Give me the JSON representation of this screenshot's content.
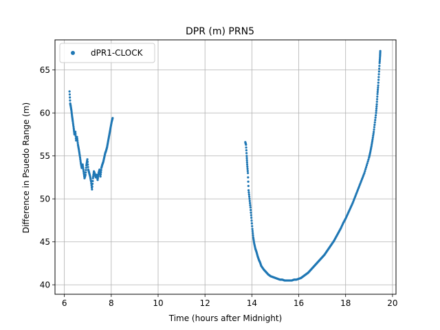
{
  "chart_data": {
    "type": "scatter",
    "title": "DPR (m) PRN5",
    "xlabel": "Time (hours after Midnight)",
    "ylabel": "Difference in Psuedo Range (m)",
    "xlim": [
      5.6,
      20.15
    ],
    "ylim": [
      38.9,
      68.5
    ],
    "xticks": [
      6,
      8,
      10,
      12,
      14,
      16,
      18,
      20
    ],
    "yticks": [
      40,
      45,
      50,
      55,
      60,
      65
    ],
    "grid": true,
    "legend": {
      "placement": "top-left",
      "entries": [
        "dPR1-CLOCK"
      ]
    },
    "series": [
      {
        "name": "dPR1-CLOCK",
        "color": "#1f77b4",
        "segments": [
          {
            "points": [
              [
                6.22,
                62.5
              ],
              [
                6.25,
                61.1
              ],
              [
                6.27,
                60.8
              ],
              [
                6.3,
                60.3
              ],
              [
                6.33,
                59.6
              ],
              [
                6.36,
                59.0
              ],
              [
                6.4,
                58.2
              ],
              [
                6.43,
                57.5
              ],
              [
                6.47,
                57.8
              ],
              [
                6.5,
                56.8
              ],
              [
                6.54,
                57.2
              ],
              [
                6.58,
                56.3
              ],
              [
                6.62,
                55.7
              ],
              [
                6.66,
                55.0
              ],
              [
                6.7,
                54.2
              ],
              [
                6.74,
                53.6
              ],
              [
                6.78,
                54.0
              ],
              [
                6.82,
                53.2
              ],
              [
                6.86,
                52.4
              ],
              [
                6.9,
                52.8
              ],
              [
                6.94,
                53.9
              ],
              [
                6.98,
                54.6
              ],
              [
                7.02,
                53.4
              ],
              [
                7.06,
                53.0
              ],
              [
                7.1,
                52.6
              ],
              [
                7.14,
                52.0
              ],
              [
                7.18,
                51.1
              ],
              [
                7.22,
                52.4
              ],
              [
                7.26,
                53.2
              ],
              [
                7.3,
                52.9
              ],
              [
                7.34,
                52.5
              ],
              [
                7.38,
                52.8
              ],
              [
                7.42,
                52.2
              ],
              [
                7.46,
                53.0
              ],
              [
                7.5,
                53.4
              ],
              [
                7.54,
                52.6
              ],
              [
                7.58,
                53.6
              ],
              [
                7.62,
                54.0
              ],
              [
                7.66,
                54.3
              ],
              [
                7.7,
                54.8
              ],
              [
                7.74,
                55.3
              ],
              [
                7.78,
                55.6
              ],
              [
                7.82,
                56.0
              ],
              [
                7.86,
                56.6
              ],
              [
                7.9,
                57.2
              ],
              [
                7.94,
                57.8
              ],
              [
                7.98,
                58.4
              ],
              [
                8.02,
                59.0
              ],
              [
                8.06,
                59.4
              ]
            ]
          },
          {
            "points": [
              [
                13.72,
                56.6
              ],
              [
                13.75,
                56.3
              ],
              [
                13.78,
                55.0
              ],
              [
                13.8,
                54.0
              ],
              [
                13.83,
                53.0
              ],
              [
                13.86,
                51.0
              ],
              [
                13.9,
                50.0
              ],
              [
                13.94,
                49.0
              ],
              [
                13.98,
                47.8
              ],
              [
                14.02,
                46.5
              ],
              [
                14.06,
                45.5
              ],
              [
                14.1,
                44.8
              ],
              [
                14.15,
                44.2
              ],
              [
                14.2,
                43.8
              ],
              [
                14.25,
                43.3
              ],
              [
                14.3,
                42.9
              ],
              [
                14.35,
                42.6
              ],
              [
                14.4,
                42.2
              ],
              [
                14.5,
                41.8
              ],
              [
                14.6,
                41.5
              ],
              [
                14.7,
                41.2
              ],
              [
                14.8,
                41.0
              ],
              [
                14.9,
                40.9
              ],
              [
                15.0,
                40.8
              ],
              [
                15.1,
                40.7
              ],
              [
                15.2,
                40.6
              ],
              [
                15.3,
                40.6
              ],
              [
                15.4,
                40.5
              ],
              [
                15.5,
                40.5
              ],
              [
                15.6,
                40.5
              ],
              [
                15.7,
                40.5
              ],
              [
                15.8,
                40.6
              ],
              [
                15.9,
                40.6
              ],
              [
                16.0,
                40.7
              ],
              [
                16.1,
                40.8
              ],
              [
                16.2,
                41.0
              ],
              [
                16.3,
                41.2
              ],
              [
                16.4,
                41.4
              ],
              [
                16.5,
                41.7
              ],
              [
                16.6,
                42.0
              ],
              [
                16.7,
                42.3
              ],
              [
                16.8,
                42.6
              ],
              [
                16.9,
                42.9
              ],
              [
                17.0,
                43.2
              ],
              [
                17.1,
                43.5
              ],
              [
                17.2,
                43.9
              ],
              [
                17.3,
                44.3
              ],
              [
                17.4,
                44.7
              ],
              [
                17.5,
                45.1
              ],
              [
                17.6,
                45.6
              ],
              [
                17.7,
                46.1
              ],
              [
                17.8,
                46.6
              ],
              [
                17.9,
                47.2
              ],
              [
                18.0,
                47.7
              ],
              [
                18.1,
                48.3
              ],
              [
                18.2,
                48.9
              ],
              [
                18.3,
                49.5
              ],
              [
                18.4,
                50.2
              ],
              [
                18.5,
                50.9
              ],
              [
                18.6,
                51.6
              ],
              [
                18.7,
                52.3
              ],
              [
                18.8,
                53.0
              ],
              [
                18.9,
                53.9
              ],
              [
                19.0,
                54.8
              ],
              [
                19.05,
                55.4
              ],
              [
                19.1,
                56.1
              ],
              [
                19.15,
                56.9
              ],
              [
                19.2,
                57.8
              ],
              [
                19.25,
                58.9
              ],
              [
                19.3,
                60.0
              ],
              [
                19.33,
                61.0
              ],
              [
                19.36,
                62.2
              ],
              [
                19.39,
                63.2
              ],
              [
                19.42,
                64.5
              ],
              [
                19.45,
                65.8
              ],
              [
                19.47,
                66.6
              ],
              [
                19.48,
                67.2
              ]
            ]
          }
        ]
      }
    ]
  }
}
